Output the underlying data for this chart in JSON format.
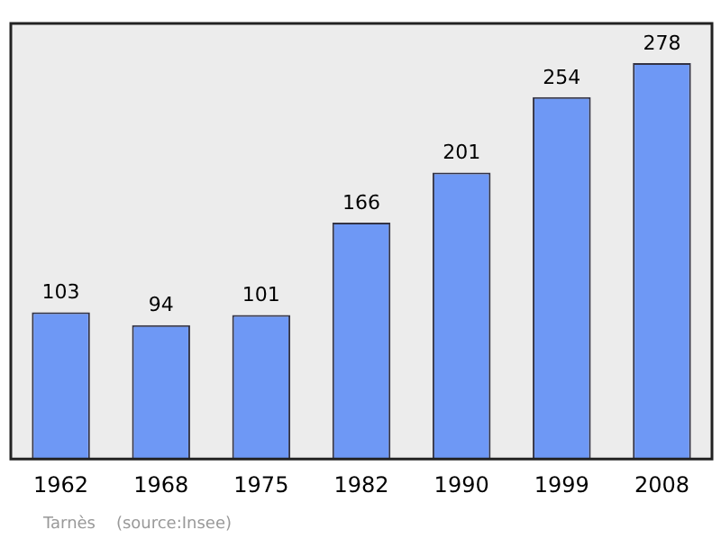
{
  "chart_data": {
    "type": "bar",
    "categories": [
      "1962",
      "1968",
      "1975",
      "1982",
      "1990",
      "1999",
      "2008"
    ],
    "values": [
      103,
      94,
      101,
      166,
      201,
      254,
      278
    ],
    "color": "#6e98f5",
    "data_labels": true,
    "grid": false,
    "legend": false,
    "annotations": [
      "Tarnès    (source:Insee)"
    ]
  }
}
